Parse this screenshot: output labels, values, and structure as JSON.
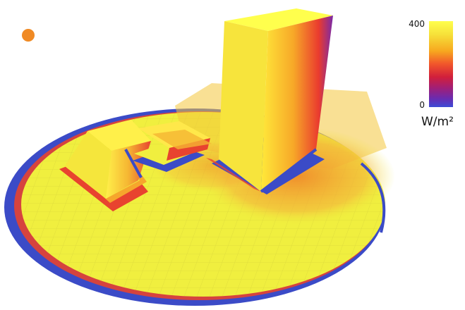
{
  "legend": {
    "max_label": "400",
    "min_label": "0",
    "unit_label": "W/m²",
    "scale_max": 400,
    "scale_min": 0,
    "colors": [
      "#ffff4d",
      "#f6e23a",
      "#f7a71f",
      "#f1552b",
      "#d11f3b",
      "#a01f78",
      "#6a2bb0",
      "#3d4bd6"
    ]
  },
  "palette": {
    "ground_yellow": "#f0ef3f",
    "grid_line": "#d8d63a",
    "heat_orange": "#f29a2e",
    "heat_red": "#e53c2c",
    "shadow_blue": "#3b4bc7",
    "sun_orange": "#f08a24"
  }
}
